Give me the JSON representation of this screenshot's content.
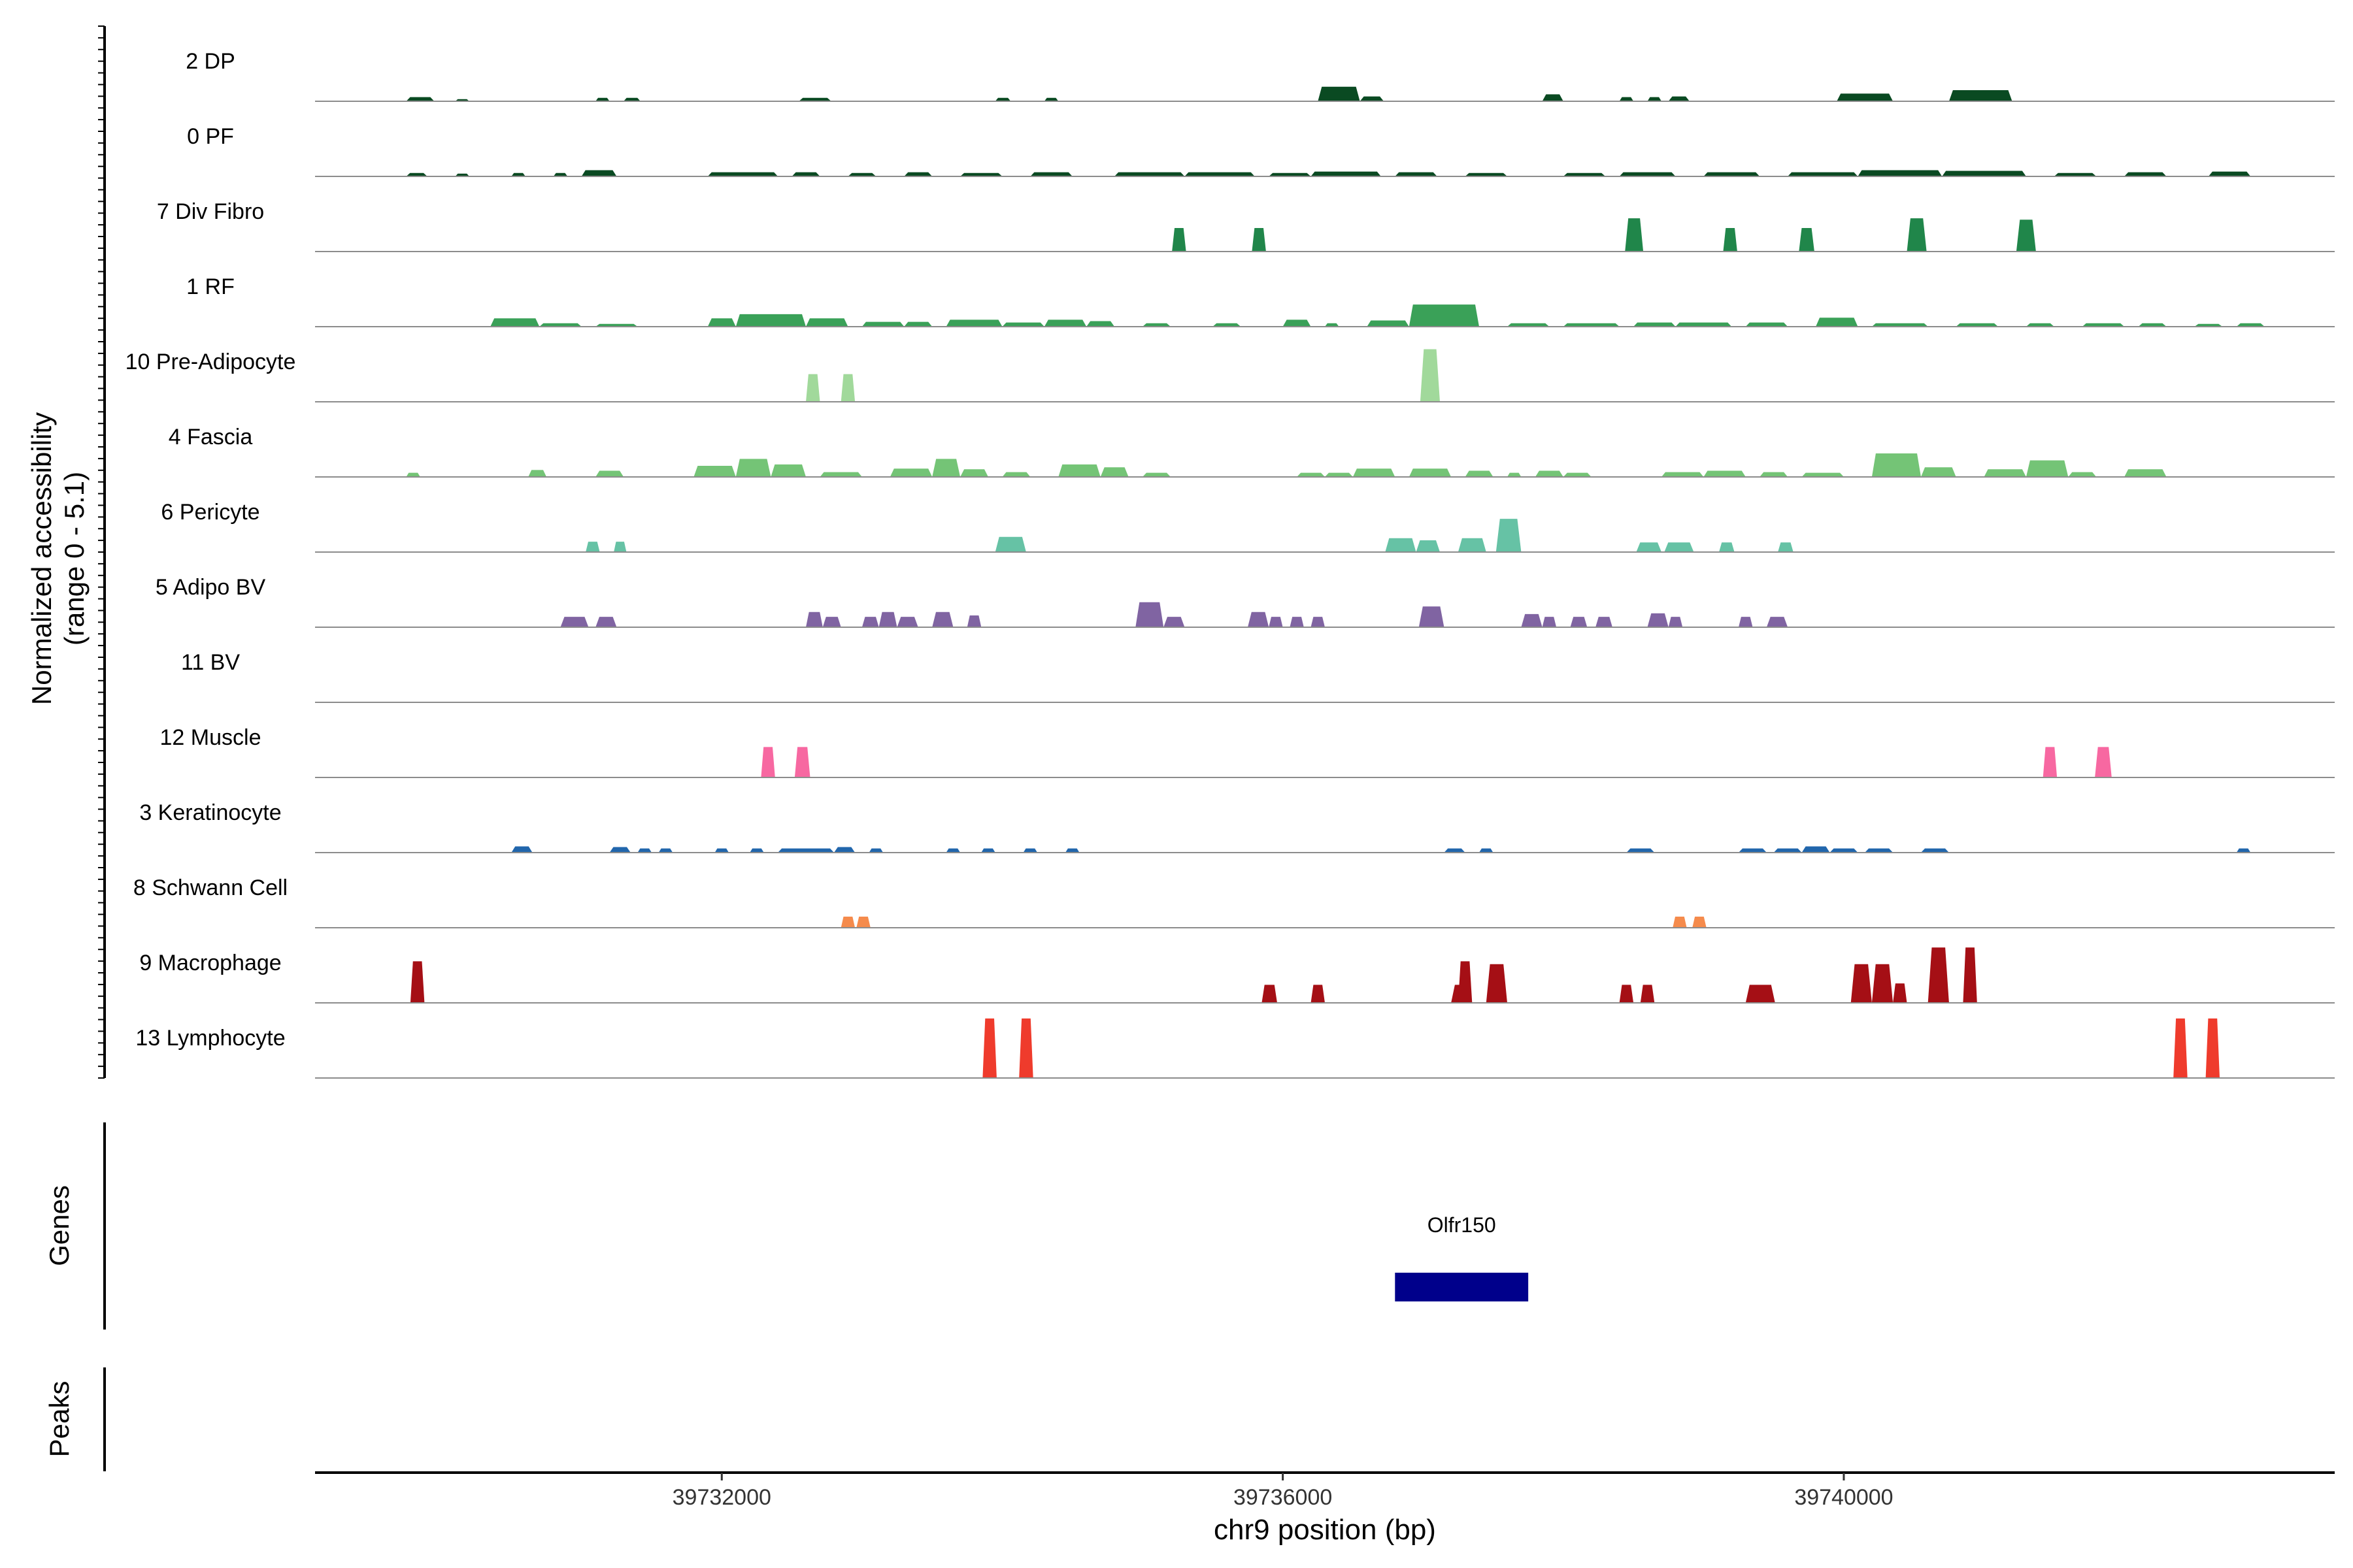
{
  "chart_data": {
    "type": "area",
    "ylabel_line1": "Normalized accessibility",
    "ylabel_line2": "(range 0 - 5.1)",
    "xlabel": "chr9 position (bp)",
    "xlim": [
      39729100,
      39743500
    ],
    "xticks": [
      {
        "value": 39732000,
        "label": "39732000"
      },
      {
        "value": 39736000,
        "label": "39736000"
      },
      {
        "value": 39740000,
        "label": "39740000"
      }
    ],
    "ylim": [
      0,
      5.1
    ],
    "tracks": [
      {
        "name": "2 DP",
        "color": "#0a4a22",
        "peaks": [
          [
            39729750,
            39729950,
            0.3
          ],
          [
            39730100,
            39730200,
            0.15
          ],
          [
            39731100,
            39731200,
            0.25
          ],
          [
            39731300,
            39731420,
            0.25
          ],
          [
            39732550,
            39732780,
            0.25
          ],
          [
            39733950,
            39734060,
            0.25
          ],
          [
            39734300,
            39734400,
            0.25
          ],
          [
            39736250,
            39736550,
            1.05
          ],
          [
            39736550,
            39736720,
            0.35
          ],
          [
            39737850,
            39738000,
            0.5
          ],
          [
            39738400,
            39738500,
            0.3
          ],
          [
            39738600,
            39738700,
            0.3
          ],
          [
            39738750,
            39738900,
            0.35
          ],
          [
            39739950,
            39740350,
            0.55
          ],
          [
            39740750,
            39741200,
            0.8
          ]
        ]
      },
      {
        "name": "0 PF",
        "color": "#0a4a22",
        "peaks": [
          [
            39729750,
            39729900,
            0.25
          ],
          [
            39730100,
            39730200,
            0.2
          ],
          [
            39730500,
            39730600,
            0.25
          ],
          [
            39730800,
            39730900,
            0.25
          ],
          [
            39731000,
            39731250,
            0.45
          ],
          [
            39731900,
            39732400,
            0.3
          ],
          [
            39732500,
            39732700,
            0.3
          ],
          [
            39732900,
            39733100,
            0.25
          ],
          [
            39733300,
            39733500,
            0.3
          ],
          [
            39733700,
            39734000,
            0.25
          ],
          [
            39734200,
            39734500,
            0.3
          ],
          [
            39734800,
            39735300,
            0.3
          ],
          [
            39735300,
            39735800,
            0.3
          ],
          [
            39735900,
            39736200,
            0.25
          ],
          [
            39736200,
            39736700,
            0.35
          ],
          [
            39736800,
            39737100,
            0.3
          ],
          [
            39737300,
            39737600,
            0.25
          ],
          [
            39738000,
            39738300,
            0.25
          ],
          [
            39738400,
            39738800,
            0.3
          ],
          [
            39739000,
            39739400,
            0.3
          ],
          [
            39739600,
            39740100,
            0.3
          ],
          [
            39740100,
            39740700,
            0.45
          ],
          [
            39740700,
            39741300,
            0.4
          ],
          [
            39741500,
            39741800,
            0.25
          ],
          [
            39742000,
            39742300,
            0.3
          ],
          [
            39742600,
            39742900,
            0.35
          ]
        ]
      },
      {
        "name": "7 Div Fibro",
        "color": "#20864a",
        "peaks": [
          [
            39735210,
            39735310,
            1.7
          ],
          [
            39735780,
            39735880,
            1.7
          ],
          [
            39738440,
            39738570,
            2.4
          ],
          [
            39739140,
            39739240,
            1.7
          ],
          [
            39739680,
            39739790,
            1.7
          ],
          [
            39740450,
            39740590,
            2.4
          ],
          [
            39741230,
            39741370,
            2.3
          ]
        ]
      },
      {
        "name": "1 RF",
        "color": "#3aa158",
        "peaks": [
          [
            39730350,
            39730700,
            0.6
          ],
          [
            39730700,
            39731000,
            0.25
          ],
          [
            39731100,
            39731400,
            0.2
          ],
          [
            39731900,
            39732100,
            0.6
          ],
          [
            39732100,
            39732600,
            0.9
          ],
          [
            39732600,
            39732900,
            0.6
          ],
          [
            39733000,
            39733300,
            0.35
          ],
          [
            39733300,
            39733500,
            0.35
          ],
          [
            39733600,
            39734000,
            0.5
          ],
          [
            39734000,
            39734300,
            0.3
          ],
          [
            39734300,
            39734600,
            0.5
          ],
          [
            39734600,
            39734800,
            0.4
          ],
          [
            39735000,
            39735200,
            0.25
          ],
          [
            39735500,
            39735700,
            0.25
          ],
          [
            39736000,
            39736200,
            0.5
          ],
          [
            39736300,
            39736400,
            0.25
          ],
          [
            39736600,
            39736900,
            0.45
          ],
          [
            39736900,
            39737400,
            1.6
          ],
          [
            39737600,
            39737900,
            0.25
          ],
          [
            39738000,
            39738400,
            0.25
          ],
          [
            39738500,
            39738800,
            0.3
          ],
          [
            39738800,
            39739200,
            0.3
          ],
          [
            39739300,
            39739600,
            0.3
          ],
          [
            39739800,
            39740100,
            0.65
          ],
          [
            39740200,
            39740600,
            0.25
          ],
          [
            39740800,
            39741100,
            0.25
          ],
          [
            39741300,
            39741500,
            0.25
          ],
          [
            39741700,
            39742000,
            0.25
          ],
          [
            39742100,
            39742300,
            0.25
          ],
          [
            39742500,
            39742700,
            0.2
          ],
          [
            39742800,
            39743000,
            0.25
          ]
        ]
      },
      {
        "name": "10 Pre-Adipocyte",
        "color": "#a1d99b",
        "peaks": [
          [
            39732600,
            39732700,
            2.0
          ],
          [
            39732850,
            39732950,
            2.0
          ],
          [
            39736980,
            39737120,
            3.8
          ]
        ]
      },
      {
        "name": "4 Fascia",
        "color": "#74c476",
        "peaks": [
          [
            39729750,
            39729850,
            0.3
          ],
          [
            39730620,
            39730750,
            0.5
          ],
          [
            39731100,
            39731300,
            0.45
          ],
          [
            39731800,
            39732100,
            0.8
          ],
          [
            39732100,
            39732350,
            1.3
          ],
          [
            39732350,
            39732600,
            0.9
          ],
          [
            39732700,
            39733000,
            0.35
          ],
          [
            39733200,
            39733500,
            0.6
          ],
          [
            39733500,
            39733700,
            1.3
          ],
          [
            39733700,
            39733900,
            0.55
          ],
          [
            39734000,
            39734200,
            0.35
          ],
          [
            39734400,
            39734700,
            0.9
          ],
          [
            39734700,
            39734900,
            0.7
          ],
          [
            39735000,
            39735200,
            0.3
          ],
          [
            39736100,
            39736300,
            0.3
          ],
          [
            39736300,
            39736500,
            0.3
          ],
          [
            39736500,
            39736800,
            0.6
          ],
          [
            39736900,
            39737200,
            0.6
          ],
          [
            39737300,
            39737500,
            0.45
          ],
          [
            39737600,
            39737700,
            0.3
          ],
          [
            39737800,
            39738000,
            0.45
          ],
          [
            39738000,
            39738200,
            0.3
          ],
          [
            39738700,
            39739000,
            0.35
          ],
          [
            39739000,
            39739300,
            0.45
          ],
          [
            39739400,
            39739600,
            0.35
          ],
          [
            39739700,
            39740000,
            0.3
          ],
          [
            39740200,
            39740550,
            1.7
          ],
          [
            39740550,
            39740800,
            0.7
          ],
          [
            39741000,
            39741300,
            0.55
          ],
          [
            39741300,
            39741600,
            1.2
          ],
          [
            39741600,
            39741800,
            0.35
          ],
          [
            39742000,
            39742300,
            0.55
          ]
        ]
      },
      {
        "name": "6 Pericyte",
        "color": "#66c2a5",
        "peaks": [
          [
            39731030,
            39731130,
            0.75
          ],
          [
            39731230,
            39731320,
            0.75
          ],
          [
            39733950,
            39734170,
            1.1
          ],
          [
            39736730,
            39736950,
            1.0
          ],
          [
            39736950,
            39737120,
            0.85
          ],
          [
            39737250,
            39737450,
            1.0
          ],
          [
            39737520,
            39737700,
            2.4
          ],
          [
            39738520,
            39738700,
            0.7
          ],
          [
            39738720,
            39738930,
            0.7
          ],
          [
            39739110,
            39739220,
            0.7
          ],
          [
            39739530,
            39739640,
            0.7
          ]
        ]
      },
      {
        "name": "5 Adipo BV",
        "color": "#8064a2",
        "peaks": [
          [
            39730850,
            39731050,
            0.75
          ],
          [
            39731100,
            39731250,
            0.75
          ],
          [
            39732600,
            39732720,
            1.1
          ],
          [
            39732720,
            39732850,
            0.75
          ],
          [
            39733000,
            39733120,
            0.75
          ],
          [
            39733120,
            39733250,
            1.1
          ],
          [
            39733250,
            39733400,
            0.75
          ],
          [
            39733500,
            39733650,
            1.1
          ],
          [
            39733750,
            39733850,
            0.85
          ],
          [
            39734950,
            39735150,
            1.8
          ],
          [
            39735150,
            39735300,
            0.75
          ],
          [
            39735750,
            39735900,
            1.1
          ],
          [
            39735900,
            39736000,
            0.75
          ],
          [
            39736050,
            39736150,
            0.75
          ],
          [
            39736200,
            39736300,
            0.75
          ],
          [
            39736970,
            39737150,
            1.5
          ],
          [
            39737700,
            39737850,
            0.95
          ],
          [
            39737850,
            39737950,
            0.75
          ],
          [
            39738050,
            39738170,
            0.75
          ],
          [
            39738230,
            39738350,
            0.75
          ],
          [
            39738600,
            39738750,
            1.0
          ],
          [
            39738750,
            39738850,
            0.75
          ],
          [
            39739250,
            39739350,
            0.75
          ],
          [
            39739450,
            39739600,
            0.75
          ]
        ]
      },
      {
        "name": "11 BV",
        "color": "#8064a2",
        "peaks": []
      },
      {
        "name": "12 Muscle",
        "color": "#f768a1",
        "peaks": [
          [
            39732280,
            39732380,
            2.2
          ],
          [
            39732520,
            39732630,
            2.2
          ],
          [
            39741420,
            39741520,
            2.2
          ],
          [
            39741790,
            39741910,
            2.2
          ]
        ]
      },
      {
        "name": "3 Keratinocyte",
        "color": "#2166ac",
        "peaks": [
          [
            39730500,
            39730650,
            0.45
          ],
          [
            39731200,
            39731350,
            0.4
          ],
          [
            39731400,
            39731500,
            0.3
          ],
          [
            39731550,
            39731650,
            0.3
          ],
          [
            39731950,
            39732050,
            0.3
          ],
          [
            39732200,
            39732300,
            0.3
          ],
          [
            39732400,
            39732800,
            0.3
          ],
          [
            39732800,
            39732950,
            0.4
          ],
          [
            39733050,
            39733150,
            0.3
          ],
          [
            39733600,
            39733700,
            0.3
          ],
          [
            39733850,
            39733950,
            0.3
          ],
          [
            39734150,
            39734250,
            0.3
          ],
          [
            39734450,
            39734550,
            0.3
          ],
          [
            39737150,
            39737300,
            0.3
          ],
          [
            39737400,
            39737500,
            0.3
          ],
          [
            39738450,
            39738650,
            0.3
          ],
          [
            39739250,
            39739450,
            0.3
          ],
          [
            39739500,
            39739700,
            0.3
          ],
          [
            39739700,
            39739900,
            0.45
          ],
          [
            39739900,
            39740100,
            0.3
          ],
          [
            39740150,
            39740350,
            0.3
          ],
          [
            39740550,
            39740750,
            0.3
          ],
          [
            39742800,
            39742900,
            0.3
          ]
        ]
      },
      {
        "name": "8 Schwann Cell",
        "color": "#f58b4c",
        "peaks": [
          [
            39732850,
            39732950,
            0.8
          ],
          [
            39732960,
            39733060,
            0.8
          ],
          [
            39738780,
            39738880,
            0.8
          ],
          [
            39738920,
            39739020,
            0.8
          ]
        ]
      },
      {
        "name": "9 Macrophage",
        "color": "#a50f15",
        "peaks": [
          [
            39729780,
            39729880,
            3.0
          ],
          [
            39735850,
            39735960,
            1.3
          ],
          [
            39736200,
            39736300,
            1.3
          ],
          [
            39737200,
            39737350,
            1.3
          ],
          [
            39737250,
            39737350,
            3.0
          ],
          [
            39737450,
            39737600,
            2.8
          ],
          [
            39738400,
            39738500,
            1.3
          ],
          [
            39738550,
            39738650,
            1.3
          ],
          [
            39739300,
            39739510,
            1.3
          ],
          [
            39740050,
            39740200,
            2.8
          ],
          [
            39740200,
            39740350,
            2.8
          ],
          [
            39740350,
            39740450,
            1.4
          ],
          [
            39740600,
            39740750,
            2.3
          ],
          [
            39740600,
            39740750,
            4.0
          ],
          [
            39740850,
            39740950,
            4.0
          ]
        ]
      },
      {
        "name": "13 Lymphocyte",
        "color": "#ef3b2c",
        "peaks": [
          [
            39733860,
            39733960,
            4.3
          ],
          [
            39734120,
            39734220,
            4.3
          ],
          [
            39742350,
            39742450,
            4.3
          ],
          [
            39742580,
            39742680,
            4.3
          ]
        ]
      }
    ],
    "genes_label": "Genes",
    "peaks_label": "Peaks",
    "genes": [
      {
        "name": "Olfr150",
        "start": 39736800,
        "end": 39737750,
        "color": "#00008b"
      }
    ]
  }
}
